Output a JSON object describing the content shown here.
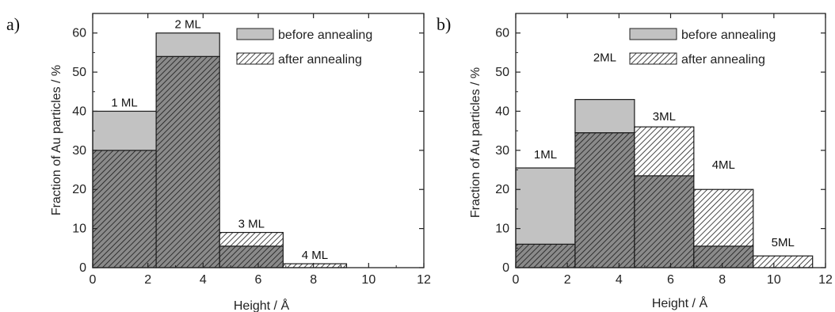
{
  "chart_data": [
    {
      "type": "bar",
      "panel_label": "a)",
      "xlabel": "Height / Å",
      "ylabel": "Fraction of Au particles / %",
      "xlim": [
        0,
        12
      ],
      "ylim": [
        0,
        65
      ],
      "xticks": [
        "0",
        "2",
        "4",
        "6",
        "8",
        "10",
        "12"
      ],
      "yticks": [
        "0",
        "10",
        "20",
        "30",
        "40",
        "50",
        "60"
      ],
      "legend": [
        "before annealing",
        "after annealing"
      ],
      "legend_placement": "top-right",
      "bins": [
        {
          "x0": 0,
          "x1": 2.3,
          "label": "1 ML",
          "before": 40,
          "after": 30
        },
        {
          "x0": 2.3,
          "x1": 4.6,
          "label": "2 ML",
          "before": 60,
          "after": 54
        },
        {
          "x0": 4.6,
          "x1": 6.9,
          "label": "3 ML",
          "before": 5.5,
          "after": 9
        },
        {
          "x0": 6.9,
          "x1": 9.2,
          "label": "4 ML",
          "before": 0,
          "after": 1
        }
      ]
    },
    {
      "type": "bar",
      "panel_label": "b)",
      "xlabel": "Height /  Å",
      "ylabel": "Fraction of Au particles / %",
      "xlim": [
        0,
        12
      ],
      "ylim": [
        0,
        65
      ],
      "xticks": [
        "0",
        "2",
        "4",
        "6",
        "8",
        "10",
        "12"
      ],
      "yticks": [
        "0",
        "10",
        "20",
        "30",
        "40",
        "50",
        "60"
      ],
      "legend": [
        "before annealing",
        "after annealing"
      ],
      "legend_placement": "top-right",
      "bins": [
        {
          "x0": 0,
          "x1": 2.3,
          "label": "1ML",
          "before": 25.5,
          "after": 6
        },
        {
          "x0": 2.3,
          "x1": 4.6,
          "label": "2ML",
          "before": 43,
          "after": 34.5
        },
        {
          "x0": 4.6,
          "x1": 6.9,
          "label": "3ML",
          "before": 23.5,
          "after": 36
        },
        {
          "x0": 6.9,
          "x1": 9.2,
          "label": "4ML",
          "before": 5.5,
          "after": 20
        },
        {
          "x0": 9.2,
          "x1": 11.5,
          "label": "5ML",
          "before": 0,
          "after": 3
        }
      ]
    }
  ],
  "colors": {
    "before_fill": "#c2c2c2",
    "hatch_line": "#1a1a1a",
    "hatch_bg_light": "#ffffff",
    "hatch_bg_dark": "#8a8a8a",
    "axis": "#222222"
  }
}
